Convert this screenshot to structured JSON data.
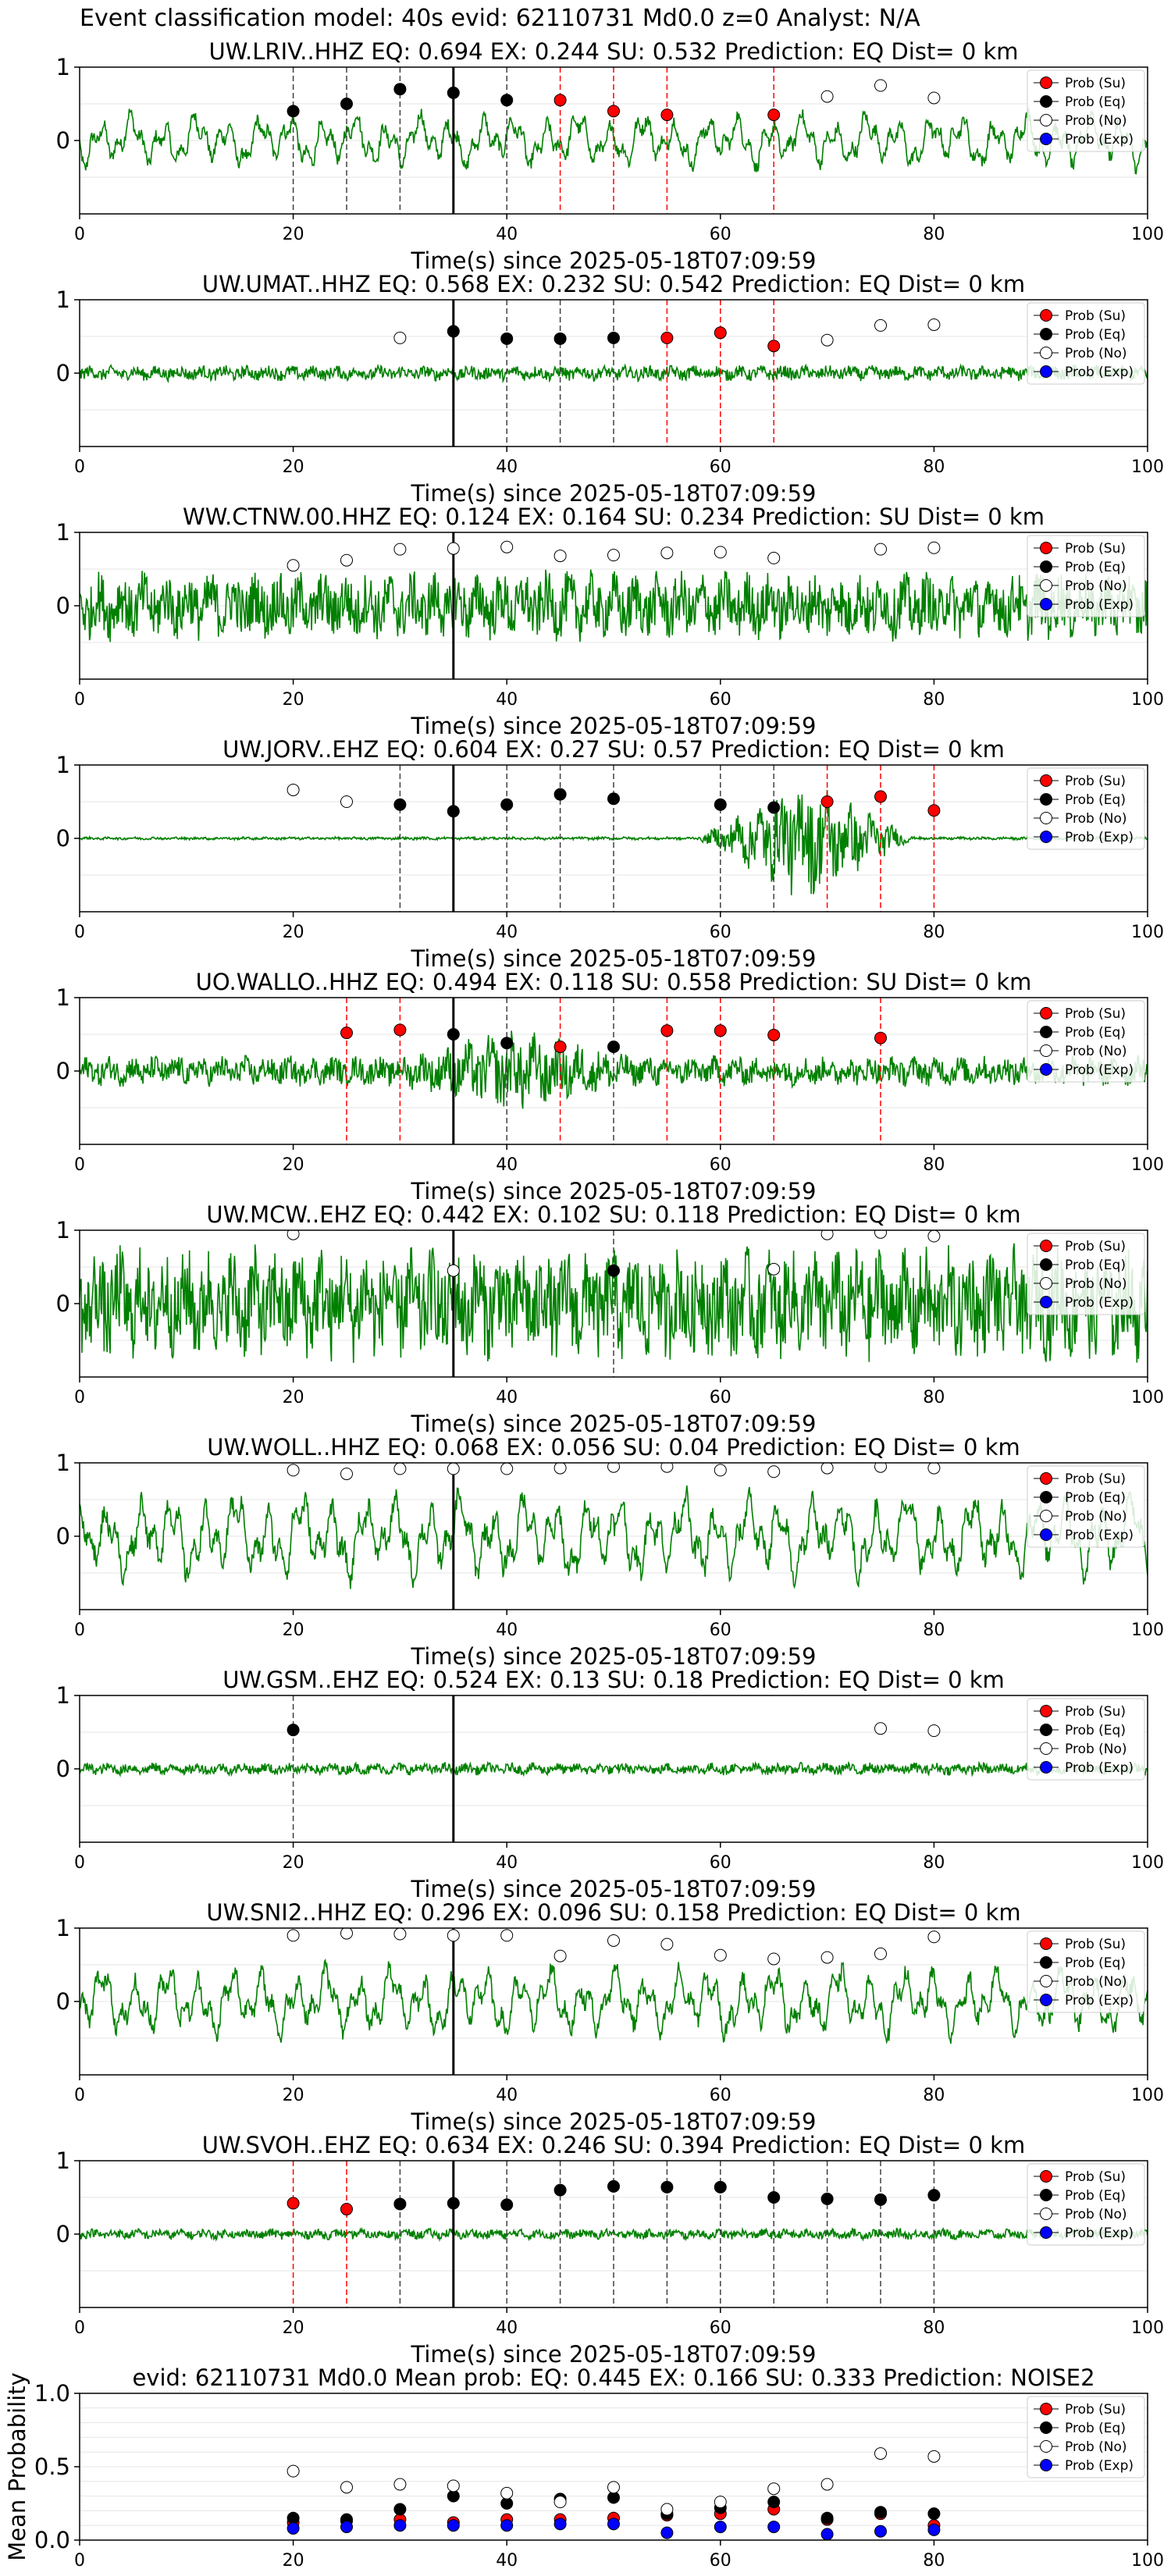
{
  "figure": {
    "suptitle": "Event classification model: 40s evid: 62110731 Md0.0 z=0 Analyst: N/A",
    "legend": [
      "Prob (Su)",
      "Prob (Eq)",
      "Prob (No)",
      "Prob (Exp)"
    ],
    "colors": {
      "su": "#ff0000",
      "eq": "#000000",
      "no": "#ffffff",
      "exp": "#0000ff",
      "waveform": "#008000",
      "su_line": "#ff0000",
      "eq_line": "#404040",
      "pick": "#000000"
    }
  },
  "chart_data": [
    {
      "type": "line",
      "title": "UW.LRIV..HHZ   EQ: 0.694  EX: 0.244  SU: 0.532   Prediction: EQ    Dist= 0 km",
      "xlabel": "Time(s) since 2025-05-18T07:09:59",
      "ylabel": "",
      "xlim": [
        0,
        100
      ],
      "ylim": [
        -1,
        1
      ],
      "yticks": [
        "1",
        "0"
      ],
      "xticks": [
        "0",
        "20",
        "40",
        "60",
        "80",
        "100"
      ],
      "pick": 35,
      "waveform": {
        "style": "smooth",
        "amp": 0.35
      },
      "points": [
        {
          "x": 20,
          "y": 0.4,
          "c": "eq"
        },
        {
          "x": 25,
          "y": 0.5,
          "c": "eq"
        },
        {
          "x": 30,
          "y": 0.7,
          "c": "eq"
        },
        {
          "x": 35,
          "y": 0.65,
          "c": "eq"
        },
        {
          "x": 40,
          "y": 0.55,
          "c": "eq"
        },
        {
          "x": 45,
          "y": 0.55,
          "c": "su"
        },
        {
          "x": 50,
          "y": 0.4,
          "c": "su"
        },
        {
          "x": 55,
          "y": 0.35,
          "c": "su"
        },
        {
          "x": 65,
          "y": 0.35,
          "c": "su"
        },
        {
          "x": 70,
          "y": 0.6,
          "c": "no"
        },
        {
          "x": 75,
          "y": 0.75,
          "c": "no"
        },
        {
          "x": 80,
          "y": 0.58,
          "c": "no"
        }
      ]
    },
    {
      "type": "line",
      "title": "UW.UMAT..HHZ   EQ: 0.568  EX: 0.232  SU: 0.542   Prediction: EQ    Dist= 0 km",
      "xlabel": "Time(s) since 2025-05-18T07:09:59",
      "ylabel": "",
      "xlim": [
        0,
        100
      ],
      "ylim": [
        -1,
        1
      ],
      "yticks": [
        "1",
        "0"
      ],
      "xticks": [
        "0",
        "20",
        "40",
        "60",
        "80",
        "100"
      ],
      "pick": 35,
      "waveform": {
        "style": "noise",
        "amp": 0.1
      },
      "points": [
        {
          "x": 30,
          "y": 0.48,
          "c": "no"
        },
        {
          "x": 35,
          "y": 0.57,
          "c": "eq"
        },
        {
          "x": 40,
          "y": 0.47,
          "c": "eq"
        },
        {
          "x": 45,
          "y": 0.47,
          "c": "eq"
        },
        {
          "x": 50,
          "y": 0.48,
          "c": "eq"
        },
        {
          "x": 55,
          "y": 0.48,
          "c": "su"
        },
        {
          "x": 60,
          "y": 0.55,
          "c": "su"
        },
        {
          "x": 65,
          "y": 0.37,
          "c": "su"
        },
        {
          "x": 70,
          "y": 0.45,
          "c": "no"
        },
        {
          "x": 75,
          "y": 0.65,
          "c": "no"
        },
        {
          "x": 80,
          "y": 0.66,
          "c": "no"
        }
      ]
    },
    {
      "type": "line",
      "title": "WW.CTNW.00.HHZ   EQ: 0.124  EX: 0.164  SU: 0.234   Prediction: SU    Dist= 0 km",
      "xlabel": "Time(s) since 2025-05-18T07:09:59",
      "ylabel": "",
      "xlim": [
        0,
        100
      ],
      "ylim": [
        -1,
        1
      ],
      "yticks": [
        "1",
        "0"
      ],
      "xticks": [
        "0",
        "20",
        "40",
        "60",
        "80",
        "100"
      ],
      "pick": 35,
      "waveform": {
        "style": "noise",
        "amp": 0.45
      },
      "points": [
        {
          "x": 20,
          "y": 0.55,
          "c": "no"
        },
        {
          "x": 25,
          "y": 0.62,
          "c": "no"
        },
        {
          "x": 30,
          "y": 0.77,
          "c": "no"
        },
        {
          "x": 35,
          "y": 0.78,
          "c": "no"
        },
        {
          "x": 40,
          "y": 0.8,
          "c": "no"
        },
        {
          "x": 45,
          "y": 0.68,
          "c": "no"
        },
        {
          "x": 50,
          "y": 0.69,
          "c": "no"
        },
        {
          "x": 55,
          "y": 0.72,
          "c": "no"
        },
        {
          "x": 60,
          "y": 0.73,
          "c": "no"
        },
        {
          "x": 65,
          "y": 0.65,
          "c": "no"
        },
        {
          "x": 75,
          "y": 0.77,
          "c": "no"
        },
        {
          "x": 80,
          "y": 0.79,
          "c": "no"
        }
      ]
    },
    {
      "type": "line",
      "title": "UW.JORV..EHZ   EQ: 0.604  EX: 0.27  SU: 0.57   Prediction: EQ    Dist= 0 km",
      "xlabel": "Time(s) since 2025-05-18T07:09:59",
      "ylabel": "",
      "xlim": [
        0,
        100
      ],
      "ylim": [
        -1,
        1
      ],
      "yticks": [
        "1",
        "0"
      ],
      "xticks": [
        "0",
        "20",
        "40",
        "60",
        "80",
        "100"
      ],
      "pick": 35,
      "waveform": {
        "style": "burst",
        "amp": 0.02,
        "burst": [
          58,
          78,
          0.85
        ]
      },
      "points": [
        {
          "x": 20,
          "y": 0.66,
          "c": "no"
        },
        {
          "x": 25,
          "y": 0.5,
          "c": "no"
        },
        {
          "x": 30,
          "y": 0.46,
          "c": "eq"
        },
        {
          "x": 35,
          "y": 0.37,
          "c": "eq"
        },
        {
          "x": 40,
          "y": 0.46,
          "c": "eq"
        },
        {
          "x": 45,
          "y": 0.6,
          "c": "eq"
        },
        {
          "x": 50,
          "y": 0.54,
          "c": "eq"
        },
        {
          "x": 60,
          "y": 0.46,
          "c": "eq"
        },
        {
          "x": 65,
          "y": 0.42,
          "c": "eq"
        },
        {
          "x": 70,
          "y": 0.5,
          "c": "su"
        },
        {
          "x": 75,
          "y": 0.57,
          "c": "su"
        },
        {
          "x": 80,
          "y": 0.38,
          "c": "su"
        }
      ]
    },
    {
      "type": "line",
      "title": "UO.WALLO..HHZ   EQ: 0.494  EX: 0.118  SU: 0.558   Prediction: SU     Dist= 0 km",
      "xlabel": "Time(s) since 2025-05-18T07:09:59",
      "ylabel": "",
      "xlim": [
        0,
        100
      ],
      "ylim": [
        -1,
        1
      ],
      "yticks": [
        "1",
        "0"
      ],
      "xticks": [
        "0",
        "20",
        "40",
        "60",
        "80",
        "100"
      ],
      "pick": 35,
      "waveform": {
        "style": "noise",
        "amp": 0.2,
        "burst": [
          30,
          52,
          0.55
        ]
      },
      "points": [
        {
          "x": 25,
          "y": 0.52,
          "c": "su"
        },
        {
          "x": 30,
          "y": 0.56,
          "c": "su"
        },
        {
          "x": 35,
          "y": 0.5,
          "c": "eq"
        },
        {
          "x": 40,
          "y": 0.38,
          "c": "eq"
        },
        {
          "x": 45,
          "y": 0.33,
          "c": "su"
        },
        {
          "x": 50,
          "y": 0.33,
          "c": "eq"
        },
        {
          "x": 55,
          "y": 0.55,
          "c": "su"
        },
        {
          "x": 60,
          "y": 0.55,
          "c": "su"
        },
        {
          "x": 65,
          "y": 0.49,
          "c": "su"
        },
        {
          "x": 75,
          "y": 0.45,
          "c": "su"
        }
      ]
    },
    {
      "type": "line",
      "title": "UW.MCW..EHZ   EQ: 0.442  EX: 0.102  SU: 0.118   Prediction: EQ    Dist= 0 km",
      "xlabel": "Time(s) since 2025-05-18T07:09:59",
      "ylabel": "",
      "xlim": [
        0,
        100
      ],
      "ylim": [
        -1,
        1
      ],
      "yticks": [
        "1",
        "0"
      ],
      "xticks": [
        "0",
        "20",
        "40",
        "60",
        "80",
        "100"
      ],
      "pick": 35,
      "waveform": {
        "style": "noise",
        "amp": 0.75
      },
      "points": [
        {
          "x": 20,
          "y": 0.95,
          "c": "no"
        },
        {
          "x": 35,
          "y": 0.45,
          "c": "no"
        },
        {
          "x": 50,
          "y": 0.45,
          "c": "eq"
        },
        {
          "x": 65,
          "y": 0.47,
          "c": "no"
        },
        {
          "x": 70,
          "y": 0.95,
          "c": "no"
        },
        {
          "x": 75,
          "y": 0.97,
          "c": "no"
        },
        {
          "x": 80,
          "y": 0.92,
          "c": "no"
        }
      ]
    },
    {
      "type": "line",
      "title": "UW.WOLL..HHZ   EQ: 0.068  EX: 0.056  SU: 0.04   Prediction: EQ    Dist= 0 km",
      "xlabel": "Time(s) since 2025-05-18T07:09:59",
      "ylabel": "",
      "xlim": [
        0,
        100
      ],
      "ylim": [
        -1,
        1
      ],
      "yticks": [
        "1",
        "0"
      ],
      "xticks": [
        "0",
        "20",
        "40",
        "60",
        "80",
        "100"
      ],
      "pick": 35,
      "waveform": {
        "style": "smooth",
        "amp": 0.55
      },
      "points": [
        {
          "x": 20,
          "y": 0.9,
          "c": "no"
        },
        {
          "x": 25,
          "y": 0.85,
          "c": "no"
        },
        {
          "x": 30,
          "y": 0.92,
          "c": "no"
        },
        {
          "x": 35,
          "y": 0.92,
          "c": "no"
        },
        {
          "x": 40,
          "y": 0.92,
          "c": "no"
        },
        {
          "x": 45,
          "y": 0.93,
          "c": "no"
        },
        {
          "x": 50,
          "y": 0.95,
          "c": "no"
        },
        {
          "x": 55,
          "y": 0.95,
          "c": "no"
        },
        {
          "x": 60,
          "y": 0.9,
          "c": "no"
        },
        {
          "x": 65,
          "y": 0.88,
          "c": "no"
        },
        {
          "x": 70,
          "y": 0.93,
          "c": "no"
        },
        {
          "x": 75,
          "y": 0.95,
          "c": "no"
        },
        {
          "x": 80,
          "y": 0.93,
          "c": "no"
        }
      ]
    },
    {
      "type": "line",
      "title": "UW.GSM..EHZ   EQ: 0.524  EX: 0.13  SU: 0.18   Prediction: EQ    Dist= 0 km",
      "xlabel": "Time(s) since 2025-05-18T07:09:59",
      "ylabel": "",
      "xlim": [
        0,
        100
      ],
      "ylim": [
        -1,
        1
      ],
      "yticks": [
        "1",
        "0"
      ],
      "xticks": [
        "0",
        "20",
        "40",
        "60",
        "80",
        "100"
      ],
      "pick": 35,
      "waveform": {
        "style": "noise",
        "amp": 0.08
      },
      "points": [
        {
          "x": 20,
          "y": 0.53,
          "c": "eq"
        },
        {
          "x": 75,
          "y": 0.55,
          "c": "no"
        },
        {
          "x": 80,
          "y": 0.52,
          "c": "no"
        }
      ]
    },
    {
      "type": "line",
      "title": "UW.SNI2..HHZ   EQ: 0.296  EX: 0.096  SU: 0.158   Prediction: EQ    Dist= 0 km",
      "xlabel": "Time(s) since 2025-05-18T07:09:59",
      "ylabel": "",
      "xlim": [
        0,
        100
      ],
      "ylim": [
        -1,
        1
      ],
      "yticks": [
        "1",
        "0"
      ],
      "xticks": [
        "0",
        "20",
        "40",
        "60",
        "80",
        "100"
      ],
      "pick": 35,
      "waveform": {
        "style": "smooth",
        "amp": 0.45
      },
      "points": [
        {
          "x": 20,
          "y": 0.9,
          "c": "no"
        },
        {
          "x": 25,
          "y": 0.93,
          "c": "no"
        },
        {
          "x": 30,
          "y": 0.92,
          "c": "no"
        },
        {
          "x": 35,
          "y": 0.9,
          "c": "no"
        },
        {
          "x": 40,
          "y": 0.9,
          "c": "no"
        },
        {
          "x": 45,
          "y": 0.62,
          "c": "no"
        },
        {
          "x": 50,
          "y": 0.83,
          "c": "no"
        },
        {
          "x": 55,
          "y": 0.78,
          "c": "no"
        },
        {
          "x": 60,
          "y": 0.63,
          "c": "no"
        },
        {
          "x": 65,
          "y": 0.58,
          "c": "no"
        },
        {
          "x": 70,
          "y": 0.6,
          "c": "no"
        },
        {
          "x": 75,
          "y": 0.65,
          "c": "no"
        },
        {
          "x": 80,
          "y": 0.88,
          "c": "no"
        }
      ]
    },
    {
      "type": "line",
      "title": "UW.SVOH..EHZ   EQ: 0.634  EX: 0.246  SU: 0.394   Prediction: EQ    Dist= 0 km",
      "xlabel": "Time(s) since 2025-05-18T07:09:59",
      "ylabel": "",
      "xlim": [
        0,
        100
      ],
      "ylim": [
        -1,
        1
      ],
      "yticks": [
        "1",
        "0"
      ],
      "xticks": [
        "0",
        "20",
        "40",
        "60",
        "80",
        "100"
      ],
      "pick": 35,
      "waveform": {
        "style": "noise",
        "amp": 0.07
      },
      "points": [
        {
          "x": 20,
          "y": 0.42,
          "c": "su"
        },
        {
          "x": 25,
          "y": 0.34,
          "c": "su"
        },
        {
          "x": 30,
          "y": 0.41,
          "c": "eq"
        },
        {
          "x": 35,
          "y": 0.42,
          "c": "eq"
        },
        {
          "x": 40,
          "y": 0.4,
          "c": "eq"
        },
        {
          "x": 45,
          "y": 0.6,
          "c": "eq"
        },
        {
          "x": 50,
          "y": 0.65,
          "c": "eq"
        },
        {
          "x": 55,
          "y": 0.64,
          "c": "eq"
        },
        {
          "x": 60,
          "y": 0.64,
          "c": "eq"
        },
        {
          "x": 65,
          "y": 0.5,
          "c": "eq"
        },
        {
          "x": 70,
          "y": 0.48,
          "c": "eq"
        },
        {
          "x": 75,
          "y": 0.47,
          "c": "eq"
        },
        {
          "x": 80,
          "y": 0.53,
          "c": "eq"
        }
      ]
    },
    {
      "type": "scatter",
      "title": "evid: 62110731  Md0.0   Mean prob:   EQ: 0.445  EX: 0.166  SU: 0.333   Prediction: NOISE2",
      "xlabel": "",
      "ylabel": "Mean Probability",
      "xlim": [
        0,
        100
      ],
      "ylim": [
        0,
        1
      ],
      "yticks": [
        "1.0",
        "0.5",
        "0.0"
      ],
      "xticks": [
        "0",
        "20",
        "40",
        "60",
        "80",
        "100"
      ],
      "series": [
        {
          "name": "Prob (Su)",
          "c": "su",
          "x": [
            20,
            25,
            30,
            35,
            40,
            45,
            50,
            55,
            60,
            65,
            70,
            75,
            80
          ],
          "y": [
            0.12,
            0.13,
            0.14,
            0.12,
            0.14,
            0.14,
            0.15,
            0.17,
            0.18,
            0.21,
            0.14,
            0.18,
            0.1
          ]
        },
        {
          "name": "Prob (Eq)",
          "c": "eq",
          "x": [
            20,
            25,
            30,
            35,
            40,
            45,
            50,
            55,
            60,
            65,
            70,
            75,
            80
          ],
          "y": [
            0.15,
            0.14,
            0.21,
            0.3,
            0.25,
            0.28,
            0.29,
            0.18,
            0.22,
            0.26,
            0.15,
            0.19,
            0.18
          ]
        },
        {
          "name": "Prob (No)",
          "c": "no",
          "x": [
            20,
            25,
            30,
            35,
            40,
            45,
            50,
            55,
            60,
            65,
            70,
            75,
            80
          ],
          "y": [
            0.47,
            0.36,
            0.38,
            0.37,
            0.32,
            0.26,
            0.36,
            0.21,
            0.26,
            0.35,
            0.38,
            0.59,
            0.57
          ]
        },
        {
          "name": "Prob (Exp)",
          "c": "exp",
          "x": [
            20,
            25,
            30,
            35,
            40,
            45,
            50,
            55,
            60,
            65,
            70,
            75,
            80
          ],
          "y": [
            0.08,
            0.09,
            0.1,
            0.1,
            0.1,
            0.11,
            0.11,
            0.05,
            0.09,
            0.09,
            0.04,
            0.06,
            0.07
          ]
        }
      ]
    }
  ]
}
